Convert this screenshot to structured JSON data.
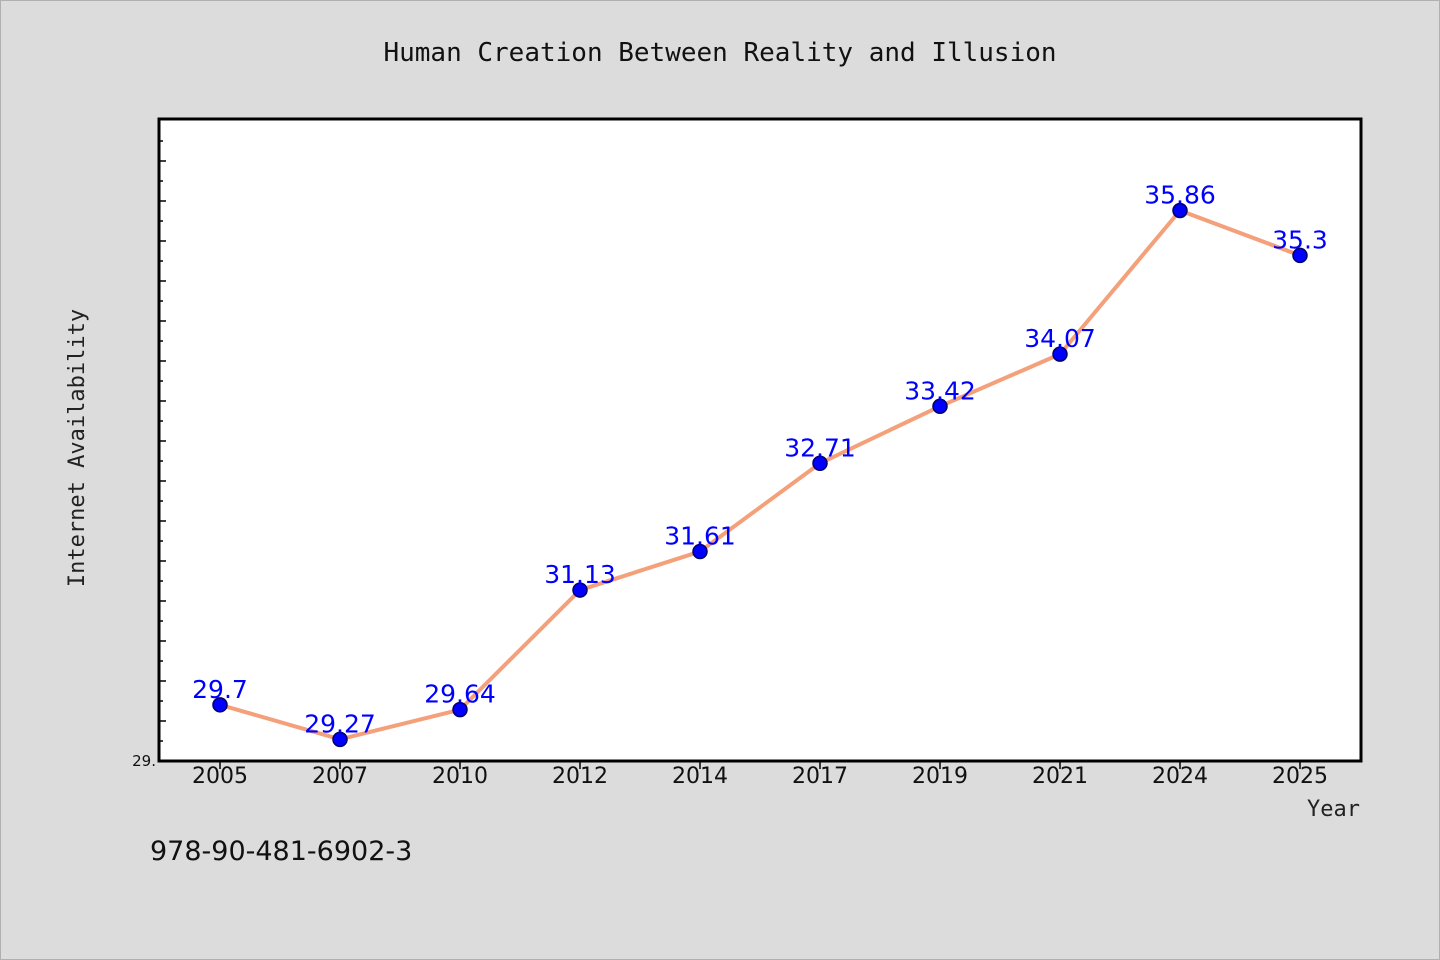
{
  "chart_data": {
    "type": "line",
    "title": "Human Creation Between Reality and Illusion",
    "xlabel": "Year",
    "ylabel": "Internet Availability",
    "categories": [
      "2005",
      "2007",
      "2010",
      "2012",
      "2014",
      "2017",
      "2019",
      "2021",
      "2024",
      "2025"
    ],
    "series": [
      {
        "values": [
          29.7,
          29.27,
          29.64,
          31.13,
          31.61,
          32.71,
          33.42,
          34.07,
          35.86,
          35.3
        ]
      }
    ],
    "data_labels": [
      "29.7",
      "29.27",
      "29.64",
      "31.13",
      "31.61",
      "32.71",
      "33.42",
      "34.07",
      "35.86",
      "35.3"
    ],
    "y_tick_label": "29.",
    "ylim": [
      29.0,
      37.0
    ],
    "grid": false,
    "legend": "none",
    "colors": {
      "line": "#f4a07a",
      "marker_fill": "#0000ff",
      "marker_stroke": "#000066",
      "data_label": "#0000ff",
      "background": "#dcdcdc",
      "plot_background": "#ffffff"
    }
  },
  "footer": {
    "isbn": "978-90-481-6902-3"
  }
}
